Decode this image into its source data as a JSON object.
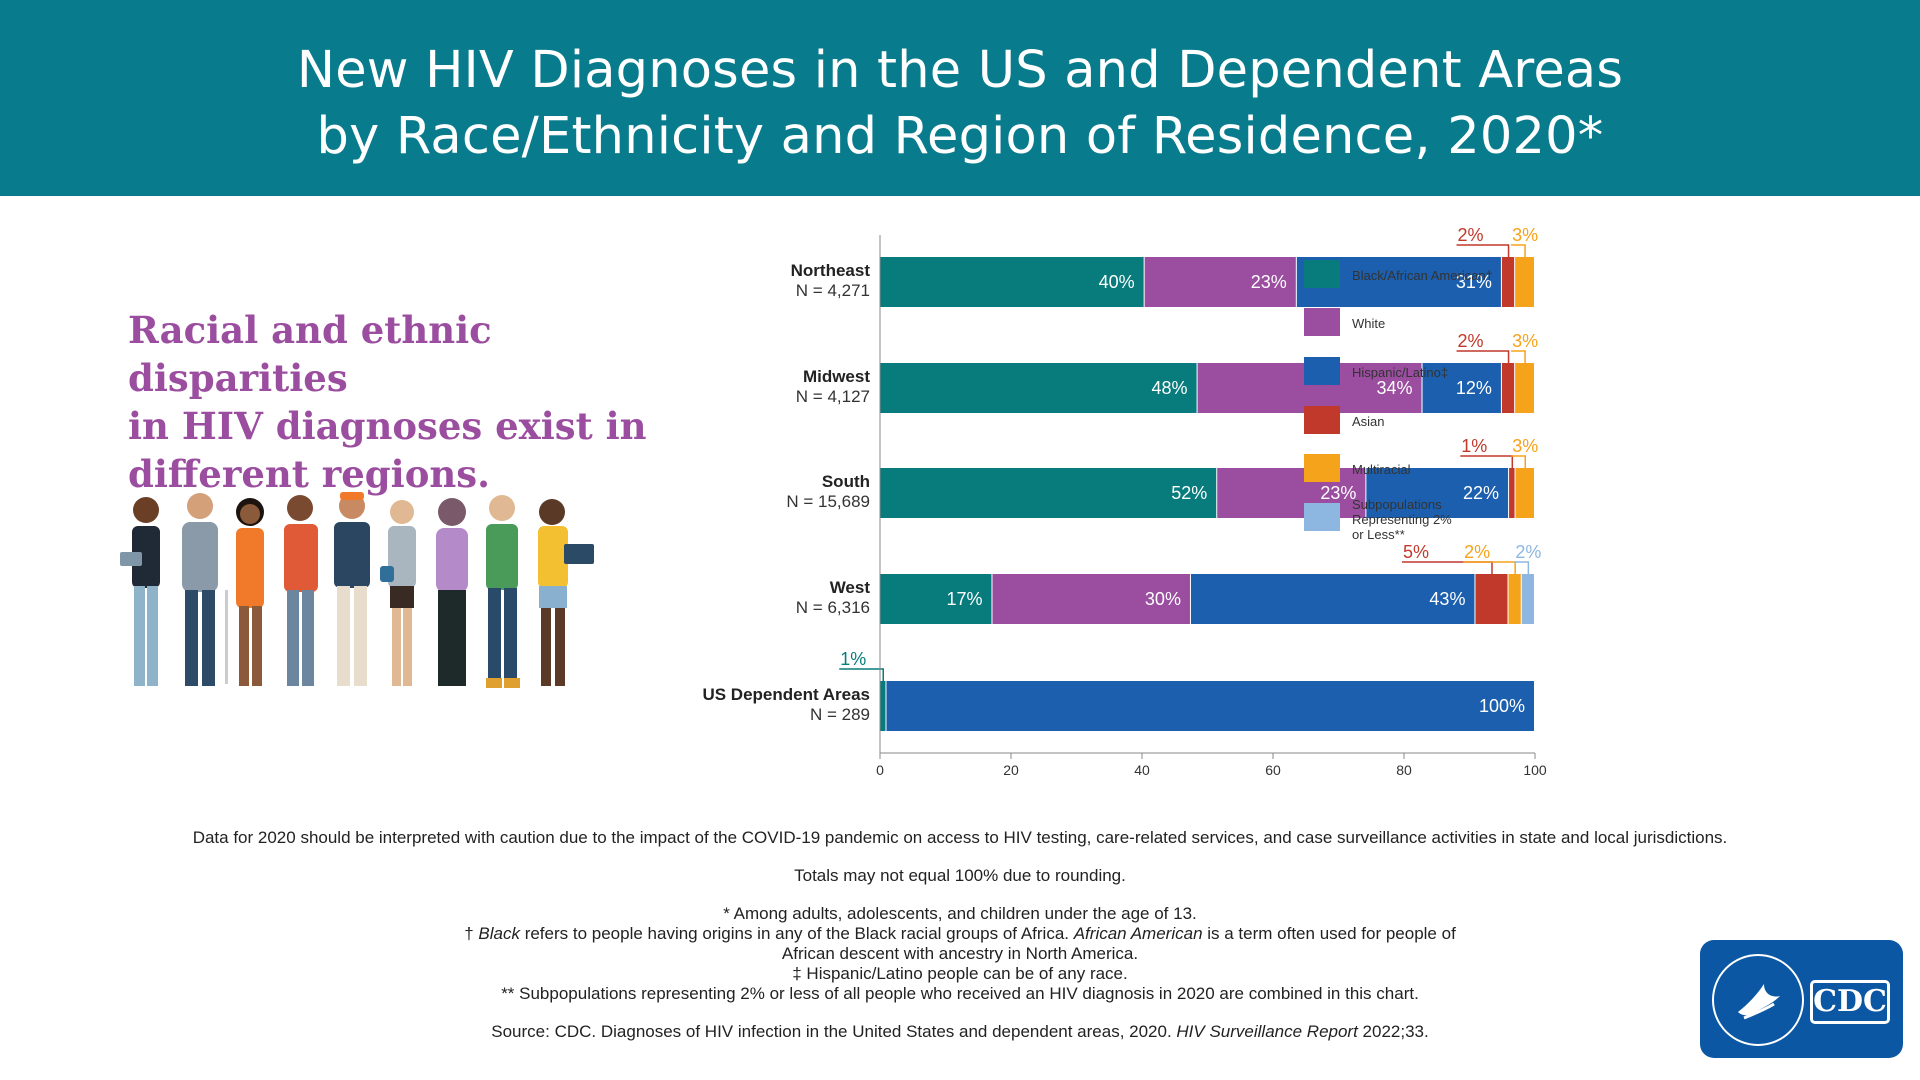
{
  "header": {
    "title_line1": "New HIV Diagnoses in the US and Dependent Areas",
    "title_line2": "by Race/Ethnicity and Region of Residence, 2020*"
  },
  "headline": {
    "line1": "Racial and ethnic disparities",
    "line2": "in HIV diagnoses exist in",
    "line3": "different regions."
  },
  "colors": {
    "banner": "#087b8c",
    "black_african_american": "#087b7c",
    "white": "#9b4d9f",
    "hispanic_latino": "#1b5fae",
    "asian": "#c0392b",
    "multiracial": "#f5a31a",
    "subpopulations": "#8db7e0"
  },
  "chart_data": {
    "type": "bar",
    "orientation": "horizontal",
    "stacked": true,
    "categories": [
      "Northeast",
      "Midwest",
      "South",
      "West",
      "US Dependent Areas"
    ],
    "category_n": [
      "N = 4,271",
      "N = 4,127",
      "N = 15,689",
      "N = 6,316",
      "N = 289"
    ],
    "series": [
      {
        "name": "Black/African American†",
        "color": "#087b7c",
        "values": [
          40,
          48,
          52,
          17,
          1
        ]
      },
      {
        "name": "White",
        "color": "#9b4d9f",
        "values": [
          23,
          34,
          23,
          30,
          0
        ]
      },
      {
        "name": "Hispanic/Latino‡",
        "color": "#1b5fae",
        "values": [
          31,
          12,
          22,
          43,
          100
        ]
      },
      {
        "name": "Asian",
        "color": "#c0392b",
        "values": [
          2,
          2,
          1,
          5,
          0
        ]
      },
      {
        "name": "Multiracial",
        "color": "#f5a31a",
        "values": [
          3,
          3,
          3,
          2,
          0
        ]
      },
      {
        "name": "Subpopulations Representing 2% or Less**",
        "color": "#8db7e0",
        "values": [
          0,
          0,
          0,
          2,
          0
        ]
      }
    ],
    "xlim": [
      0,
      100
    ],
    "xticks": [
      "0",
      "20",
      "40",
      "60",
      "80",
      "100"
    ],
    "legend": "right",
    "grid": false
  },
  "footnotes": {
    "caution": "Data for 2020 should be interpreted with caution due to the impact of the COVID-19 pandemic on access to HIV testing, care-related services, and case surveillance activities in state and local jurisdictions.",
    "totals": "Totals may not equal 100% due to rounding.",
    "n1": "* Among adults, adolescents, and children under the age of 13.",
    "n2_mark": "† ",
    "n2_em1": "Black",
    "n2_text1": " refers to people having origins in any of the Black racial groups of Africa. ",
    "n2_em2": "African American",
    "n2_text2": " is a term often used for people of",
    "n2_line2": "African descent with ancestry in North America.",
    "n3": "‡ Hispanic/Latino people can be of any race.",
    "n4": "** Subpopulations representing 2% or less of all people who received an HIV diagnosis in 2020 are combined in this chart.",
    "source_text": "Source: CDC. Diagnoses of HIV infection in the United States and dependent areas, 2020. ",
    "source_em": "HIV Surveillance Report",
    "source_tail": " 2022;33."
  },
  "logo": {
    "text": "CDC",
    "seal_icon": "hhs-seal-icon"
  }
}
